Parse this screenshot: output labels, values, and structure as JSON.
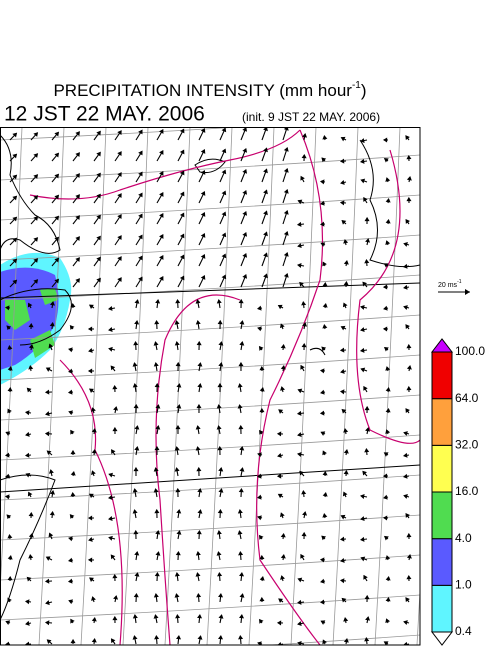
{
  "title": {
    "text": "PRECIPITATION INTENSITY (mm hour",
    "superscript": "-1",
    "close": ")"
  },
  "valid_time": "12 JST 22 MAY. 2006",
  "init_time": "(init. 9 JST 22 MAY. 2006)",
  "wind_scale": {
    "text": "20 ms",
    "superscript": "-1"
  },
  "legend": {
    "labels": [
      "0.4",
      "1.0",
      "4.0",
      "16.0",
      "32.0",
      "64.0",
      "100.0"
    ],
    "colors": [
      "#ffffff",
      "#5ff5ff",
      "#5a5aff",
      "#50dc50",
      "#ffff50",
      "#ffa03c",
      "#f00000",
      "#c800ff"
    ]
  }
}
